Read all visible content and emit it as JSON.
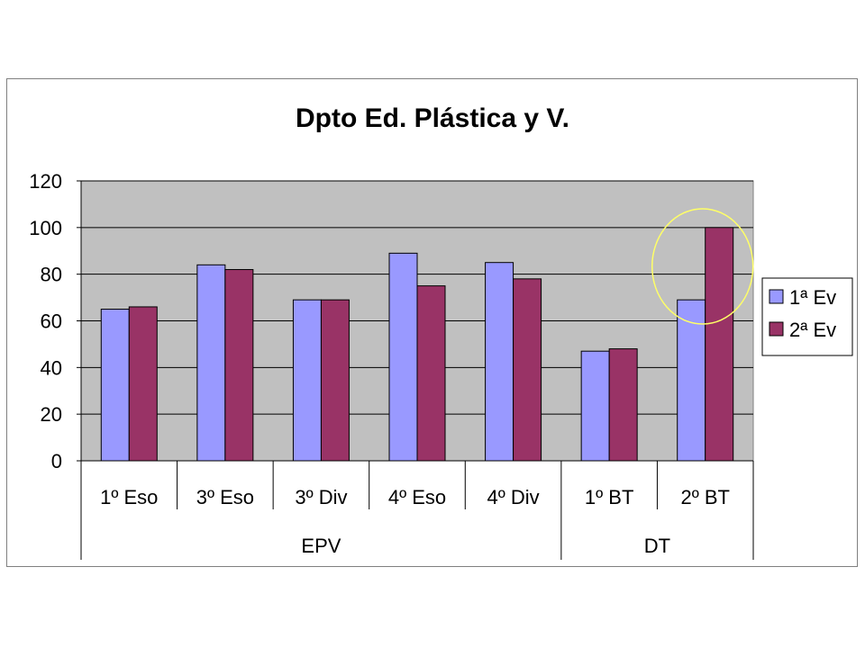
{
  "chart_data": {
    "type": "bar",
    "title": "Dpto Ed. Plástica y V.",
    "xlabel": "",
    "ylabel": "",
    "ylim": [
      0,
      120
    ],
    "yticks": [
      0,
      20,
      40,
      60,
      80,
      100,
      120
    ],
    "grid": true,
    "legend_position": "right",
    "categories": [
      "1º Eso",
      "3º Eso",
      "3º Div",
      "4º Eso",
      "4º Div",
      "1º BT",
      "2º BT"
    ],
    "groups": [
      {
        "label": "EPV",
        "categories": [
          "1º Eso",
          "3º Eso",
          "3º Div",
          "4º Eso",
          "4º Div"
        ]
      },
      {
        "label": "DT",
        "categories": [
          "1º BT",
          "2º BT"
        ]
      }
    ],
    "series": [
      {
        "name": "1ª Ev",
        "color": "#9999ff",
        "values": [
          65,
          84,
          69,
          89,
          85,
          47,
          69
        ]
      },
      {
        "name": "2ª Ev",
        "color": "#993366",
        "values": [
          66,
          82,
          69,
          75,
          78,
          48,
          100
        ]
      }
    ],
    "plot_background": "#c0c0c0",
    "highlight": {
      "category": "2º BT",
      "shape": "ellipse",
      "color": "#ffff66"
    }
  }
}
